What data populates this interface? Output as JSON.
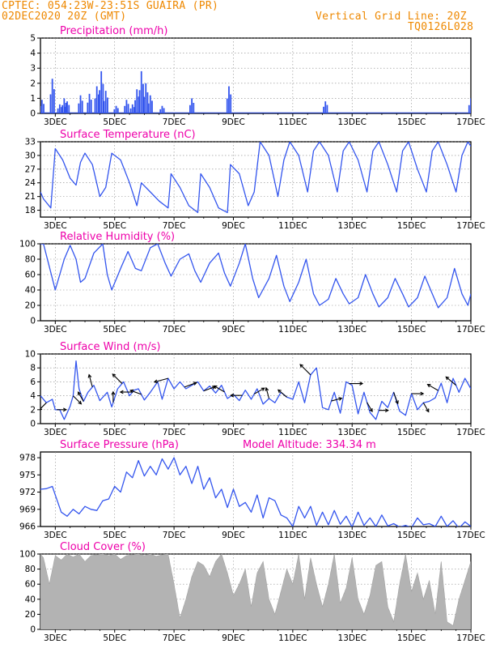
{
  "header": {
    "station": "CPTEC:   054:23W-23:51S   GUAIRA (PR)",
    "run": "02DEC2020 20Z (GMT)",
    "grid_note": "Vertical Grid Line: 20Z",
    "code": "TQ0126L028"
  },
  "colors": {
    "header": "#ee8800",
    "panel_title": "#ee00aa",
    "series": "#3355ee",
    "cloud": "#aaaaaa",
    "arrow": "#000000",
    "grid": "#888888"
  },
  "x_axis": {
    "start_day": 2.5,
    "end_day": 17,
    "tick_days": [
      3,
      5,
      7,
      9,
      11,
      13,
      15,
      17
    ],
    "tick_labels": [
      "3DEC",
      "5DEC",
      "7DEC",
      "9DEC",
      "11DEC",
      "13DEC",
      "15DEC",
      "17DEC"
    ]
  },
  "chart_data": [
    {
      "id": "precip",
      "type": "bar",
      "title": "Precipitation (mm/h)",
      "ylim": [
        0,
        5
      ],
      "yticks": [
        0,
        1,
        2,
        3,
        4,
        5
      ],
      "grid": true,
      "peaks": [
        {
          "x": 2.55,
          "y": 0.9
        },
        {
          "x": 2.9,
          "y": 2.3
        },
        {
          "x": 3.15,
          "y": 0.6
        },
        {
          "x": 3.3,
          "y": 1.0
        },
        {
          "x": 3.4,
          "y": 0.8
        },
        {
          "x": 3.85,
          "y": 1.2
        },
        {
          "x": 4.15,
          "y": 1.3
        },
        {
          "x": 4.4,
          "y": 1.8
        },
        {
          "x": 4.55,
          "y": 2.8
        },
        {
          "x": 4.7,
          "y": 1.5
        },
        {
          "x": 5.05,
          "y": 0.5
        },
        {
          "x": 5.4,
          "y": 0.9
        },
        {
          "x": 5.6,
          "y": 0.6
        },
        {
          "x": 5.75,
          "y": 1.6
        },
        {
          "x": 5.9,
          "y": 2.8
        },
        {
          "x": 6.05,
          "y": 2.0
        },
        {
          "x": 6.2,
          "y": 1.2
        },
        {
          "x": 6.6,
          "y": 0.5
        },
        {
          "x": 7.6,
          "y": 1.0
        },
        {
          "x": 8.85,
          "y": 1.8
        },
        {
          "x": 12.1,
          "y": 0.8
        },
        {
          "x": 17.0,
          "y": 1.0
        }
      ]
    },
    {
      "id": "temp",
      "type": "line",
      "title": "Surface Temperature (nC)",
      "ylim": [
        16.5,
        33
      ],
      "yticks": [
        18,
        21,
        24,
        27,
        30,
        33
      ],
      "grid": true,
      "x": [
        2.5,
        2.6,
        2.85,
        3.0,
        3.25,
        3.5,
        3.7,
        3.85,
        4.0,
        4.25,
        4.5,
        4.7,
        4.9,
        5.2,
        5.5,
        5.75,
        5.9,
        6.2,
        6.5,
        6.8,
        6.9,
        7.2,
        7.5,
        7.8,
        7.9,
        8.2,
        8.5,
        8.8,
        8.9,
        9.2,
        9.5,
        9.7,
        9.9,
        10.2,
        10.5,
        10.7,
        10.9,
        11.2,
        11.5,
        11.7,
        11.9,
        12.2,
        12.5,
        12.7,
        12.9,
        13.2,
        13.5,
        13.7,
        13.9,
        14.2,
        14.5,
        14.7,
        14.9,
        15.2,
        15.5,
        15.7,
        15.9,
        16.2,
        16.5,
        16.7,
        16.9,
        17.0
      ],
      "y": [
        22,
        20.5,
        18.5,
        31.5,
        29,
        25,
        23.5,
        28.5,
        30.5,
        28,
        21,
        23,
        30.5,
        29,
        24,
        19,
        24,
        22,
        20,
        18.5,
        26,
        23,
        19,
        17.5,
        26,
        23,
        18.5,
        17.5,
        28,
        26,
        19,
        22,
        33,
        30,
        21,
        29,
        33,
        30,
        22,
        31,
        33,
        30,
        22,
        31,
        33,
        29,
        22,
        31,
        33,
        28,
        22,
        31,
        33,
        27,
        22,
        31,
        33,
        28,
        22,
        30,
        33,
        32
      ]
    },
    {
      "id": "rh",
      "type": "line",
      "title": "Relative Humidity (%)",
      "ylim": [
        0,
        100
      ],
      "yticks": [
        0,
        20,
        40,
        60,
        80,
        100
      ],
      "grid": true,
      "x": [
        2.5,
        2.6,
        2.9,
        3.0,
        3.3,
        3.5,
        3.7,
        3.85,
        4.0,
        4.3,
        4.6,
        4.75,
        4.9,
        5.2,
        5.45,
        5.7,
        5.9,
        6.2,
        6.45,
        6.7,
        6.9,
        7.2,
        7.5,
        7.7,
        7.9,
        8.2,
        8.5,
        8.7,
        8.9,
        9.2,
        9.4,
        9.65,
        9.85,
        10.2,
        10.45,
        10.7,
        10.9,
        11.2,
        11.45,
        11.7,
        11.9,
        12.2,
        12.45,
        12.7,
        12.9,
        13.2,
        13.45,
        13.7,
        13.9,
        14.2,
        14.45,
        14.7,
        14.9,
        15.2,
        15.45,
        15.7,
        15.9,
        16.2,
        16.45,
        16.7,
        16.9,
        17.0
      ],
      "y": [
        100,
        100,
        55,
        40,
        80,
        98,
        80,
        50,
        55,
        88,
        100,
        60,
        40,
        68,
        90,
        68,
        65,
        95,
        100,
        75,
        58,
        80,
        87,
        65,
        50,
        75,
        88,
        62,
        45,
        75,
        100,
        55,
        30,
        55,
        85,
        45,
        25,
        50,
        80,
        35,
        20,
        28,
        55,
        35,
        22,
        30,
        60,
        35,
        18,
        30,
        55,
        35,
        18,
        30,
        58,
        35,
        17,
        30,
        68,
        35,
        20,
        35
      ]
    },
    {
      "id": "wind",
      "type": "line",
      "title": "Surface Wind (m/s)",
      "ylim": [
        0,
        10
      ],
      "yticks": [
        0,
        2,
        4,
        6,
        8,
        10
      ],
      "grid": true,
      "x": [
        2.5,
        2.7,
        2.9,
        3.0,
        3.15,
        3.3,
        3.5,
        3.6,
        3.7,
        3.8,
        3.95,
        4.1,
        4.3,
        4.5,
        4.75,
        4.9,
        5.1,
        5.3,
        5.5,
        5.65,
        5.8,
        6.0,
        6.2,
        6.45,
        6.6,
        6.8,
        7.0,
        7.2,
        7.4,
        7.6,
        7.8,
        8.0,
        8.2,
        8.4,
        8.6,
        8.8,
        9.0,
        9.2,
        9.4,
        9.6,
        9.8,
        10.0,
        10.2,
        10.4,
        10.6,
        10.8,
        11.0,
        11.2,
        11.4,
        11.6,
        11.8,
        12.0,
        12.2,
        12.4,
        12.6,
        12.8,
        13.0,
        13.2,
        13.4,
        13.6,
        13.8,
        14.0,
        14.2,
        14.4,
        14.6,
        14.8,
        15.0,
        15.2,
        15.4,
        15.6,
        15.8,
        16.0,
        16.2,
        16.4,
        16.6,
        16.8,
        17.0
      ],
      "y": [
        4,
        3,
        3.5,
        2,
        2,
        0.6,
        2.5,
        4,
        9,
        5,
        3.2,
        4.5,
        5.5,
        3.3,
        4.5,
        2.4,
        5,
        6,
        4,
        4.8,
        5,
        3.4,
        4.5,
        6,
        3.5,
        6.5,
        5,
        6,
        5,
        5.5,
        6,
        4.7,
        5.4,
        4.4,
        5.5,
        3.6,
        4.2,
        3.3,
        4.8,
        3.5,
        5,
        2.8,
        3.6,
        3,
        4.5,
        3.8,
        3.5,
        6,
        3,
        7,
        8,
        2.3,
        2,
        4.5,
        1.5,
        6,
        5.5,
        1.4,
        4.5,
        1.6,
        0.6,
        3.2,
        2.3,
        4.5,
        1.8,
        1.2,
        4.3,
        2,
        3,
        3.2,
        3.7,
        5.8,
        3,
        6.5,
        4.5,
        6.5,
        5
      ]
    },
    {
      "id": "pressure",
      "type": "line",
      "title": "Surface Pressure (hPa)",
      "annotation": "Model Altitude: 334.34 m",
      "ylim": [
        966,
        979
      ],
      "yticks": [
        966,
        969,
        972,
        975,
        978
      ],
      "grid": false,
      "x": [
        2.5,
        2.7,
        2.9,
        3.0,
        3.2,
        3.4,
        3.6,
        3.8,
        4.0,
        4.2,
        4.4,
        4.6,
        4.8,
        5.0,
        5.2,
        5.4,
        5.6,
        5.8,
        6.0,
        6.2,
        6.4,
        6.6,
        6.8,
        7.0,
        7.2,
        7.4,
        7.6,
        7.8,
        8.0,
        8.2,
        8.4,
        8.6,
        8.8,
        9.0,
        9.2,
        9.4,
        9.6,
        9.8,
        10.0,
        10.2,
        10.4,
        10.6,
        10.8,
        11.0,
        11.2,
        11.4,
        11.6,
        11.8,
        12.0,
        12.2,
        12.4,
        12.6,
        12.8,
        13.0,
        13.2,
        13.4,
        13.6,
        13.8,
        14.0,
        14.2,
        14.4,
        14.6,
        14.8,
        15.0,
        15.2,
        15.4,
        15.6,
        15.8,
        16.0,
        16.2,
        16.4,
        16.6,
        16.8,
        17.0
      ],
      "y": [
        972.5,
        972.6,
        973,
        971.5,
        968.5,
        967.8,
        969,
        968.2,
        969.5,
        969,
        968.8,
        970.5,
        970.8,
        973,
        972,
        975.5,
        974.5,
        977.5,
        974.8,
        976.5,
        975,
        977.8,
        976,
        978,
        975,
        976.5,
        973.5,
        976.5,
        972.5,
        974.5,
        971,
        972.5,
        969.3,
        972.5,
        969.5,
        970.2,
        968.5,
        971.5,
        967.5,
        971,
        970.5,
        968,
        967.5,
        966,
        969.5,
        967.5,
        969.5,
        966.2,
        968.5,
        966.3,
        968.8,
        966.4,
        967.8,
        965.9,
        968.5,
        966.2,
        967.5,
        966,
        968,
        966.1,
        966.5,
        965.9,
        966.2,
        965.8,
        967.5,
        966.3,
        966.5,
        966,
        967.8,
        966,
        967,
        965.7,
        966.8,
        966
      ]
    },
    {
      "id": "cloud",
      "type": "area",
      "title": "Cloud Cover (%)",
      "ylim": [
        0,
        100
      ],
      "yticks": [
        0,
        20,
        40,
        60,
        80,
        100
      ],
      "grid": true,
      "x": [
        2.5,
        2.6,
        2.8,
        3.0,
        3.2,
        3.4,
        3.6,
        3.8,
        4.0,
        4.2,
        4.4,
        4.6,
        4.8,
        5.0,
        5.2,
        5.4,
        5.6,
        5.8,
        6.0,
        6.2,
        6.4,
        6.6,
        6.8,
        7.0,
        7.2,
        7.4,
        7.6,
        7.8,
        8.0,
        8.2,
        8.4,
        8.6,
        8.8,
        9.0,
        9.2,
        9.4,
        9.6,
        9.8,
        10.0,
        10.2,
        10.4,
        10.6,
        10.8,
        11.0,
        11.2,
        11.4,
        11.6,
        11.8,
        12.0,
        12.2,
        12.4,
        12.6,
        12.8,
        13.0,
        13.2,
        13.4,
        13.6,
        13.8,
        14.0,
        14.2,
        14.4,
        14.6,
        14.8,
        15.0,
        15.2,
        15.4,
        15.6,
        15.8,
        16.0,
        16.2,
        16.4,
        16.6,
        16.8,
        17.0
      ],
      "y": [
        100,
        95,
        60,
        98,
        92,
        100,
        96,
        100,
        90,
        98,
        99,
        100,
        98,
        100,
        93,
        98,
        99,
        100,
        98,
        100,
        97,
        99,
        100,
        60,
        15,
        40,
        70,
        90,
        85,
        70,
        90,
        100,
        75,
        45,
        60,
        80,
        30,
        75,
        90,
        40,
        20,
        50,
        80,
        60,
        100,
        40,
        95,
        60,
        30,
        60,
        100,
        35,
        55,
        95,
        40,
        20,
        45,
        85,
        90,
        30,
        10,
        60,
        100,
        50,
        75,
        40,
        65,
        20,
        90,
        10,
        5,
        40,
        65,
        90
      ]
    }
  ],
  "wind_arrows": [
    {
      "x": 2.7,
      "dir": 225
    },
    {
      "x": 3.05,
      "dir": 90
    },
    {
      "x": 3.6,
      "dir": 135
    },
    {
      "x": 3.95,
      "dir": 330
    },
    {
      "x": 4.25,
      "dir": 345
    },
    {
      "x": 4.95,
      "dir": 0
    },
    {
      "x": 5.25,
      "dir": 315
    },
    {
      "x": 5.6,
      "dir": 270
    },
    {
      "x": 5.9,
      "dir": 290
    },
    {
      "x": 6.8,
      "dir": 255
    },
    {
      "x": 7.35,
      "dir": 70
    },
    {
      "x": 8.0,
      "dir": 70
    },
    {
      "x": 8.7,
      "dir": 300
    },
    {
      "x": 9.3,
      "dir": 270
    },
    {
      "x": 9.7,
      "dir": 60
    },
    {
      "x": 10.2,
      "dir": 345
    },
    {
      "x": 10.8,
      "dir": 310
    },
    {
      "x": 11.6,
      "dir": 315
    },
    {
      "x": 12.3,
      "dir": 75
    },
    {
      "x": 12.9,
      "dir": 90
    },
    {
      "x": 13.5,
      "dir": 150
    },
    {
      "x": 13.9,
      "dir": 90
    },
    {
      "x": 14.4,
      "dir": 160
    },
    {
      "x": 15.0,
      "dir": 90
    },
    {
      "x": 15.4,
      "dir": 150
    },
    {
      "x": 15.9,
      "dir": 300
    },
    {
      "x": 16.5,
      "dir": 310
    }
  ]
}
